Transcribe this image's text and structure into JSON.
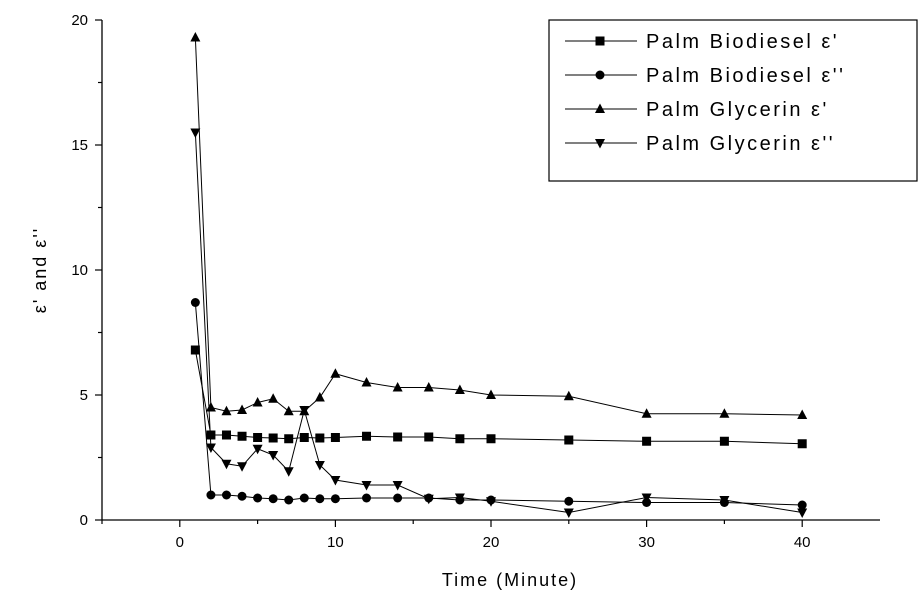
{
  "chart_data": {
    "type": "line",
    "xlabel": "Time (Minute)",
    "ylabel": "ε' and ε''",
    "xlim": [
      -5,
      45
    ],
    "ylim": [
      0,
      20
    ],
    "x_ticks": [
      0,
      10,
      20,
      30,
      40
    ],
    "y_ticks": [
      0,
      5,
      10,
      15,
      20
    ],
    "grid": false,
    "legend_position": "top-right",
    "series": [
      {
        "name": "Palm Biodiesel ε'",
        "marker": "square",
        "x": [
          1,
          2,
          3,
          4,
          5,
          6,
          7,
          8,
          9,
          10,
          12,
          14,
          16,
          18,
          20,
          25,
          30,
          35,
          40
        ],
        "y": [
          6.8,
          3.4,
          3.4,
          3.35,
          3.3,
          3.28,
          3.25,
          3.3,
          3.28,
          3.3,
          3.35,
          3.32,
          3.32,
          3.25,
          3.25,
          3.2,
          3.15,
          3.15,
          3.05
        ]
      },
      {
        "name": "Palm Biodiesel ε''",
        "marker": "circle",
        "x": [
          1,
          2,
          3,
          4,
          5,
          6,
          7,
          8,
          9,
          10,
          12,
          14,
          16,
          18,
          20,
          25,
          30,
          35,
          40
        ],
        "y": [
          8.7,
          1.0,
          1.0,
          0.95,
          0.88,
          0.85,
          0.8,
          0.88,
          0.85,
          0.85,
          0.88,
          0.88,
          0.88,
          0.8,
          0.8,
          0.75,
          0.7,
          0.7,
          0.6
        ]
      },
      {
        "name": "Palm Glycerin ε'",
        "marker": "triangle-up",
        "x": [
          1,
          2,
          3,
          4,
          5,
          6,
          7,
          8,
          9,
          10,
          12,
          14,
          16,
          18,
          20,
          25,
          30,
          35,
          40
        ],
        "y": [
          19.3,
          4.5,
          4.35,
          4.4,
          4.7,
          4.85,
          4.35,
          4.35,
          4.9,
          5.85,
          5.5,
          5.3,
          5.3,
          5.2,
          5.0,
          4.95,
          4.25,
          4.25,
          4.2
        ]
      },
      {
        "name": "Palm Glycerin ε''",
        "marker": "triangle-down",
        "x": [
          1,
          2,
          3,
          4,
          5,
          6,
          7,
          8,
          9,
          10,
          12,
          14,
          16,
          18,
          20,
          25,
          30,
          35,
          40
        ],
        "y": [
          15.5,
          2.9,
          2.25,
          2.15,
          2.85,
          2.6,
          1.95,
          4.4,
          2.2,
          1.6,
          1.4,
          1.4,
          0.85,
          0.9,
          0.75,
          0.3,
          0.9,
          0.8,
          0.3
        ]
      }
    ]
  }
}
